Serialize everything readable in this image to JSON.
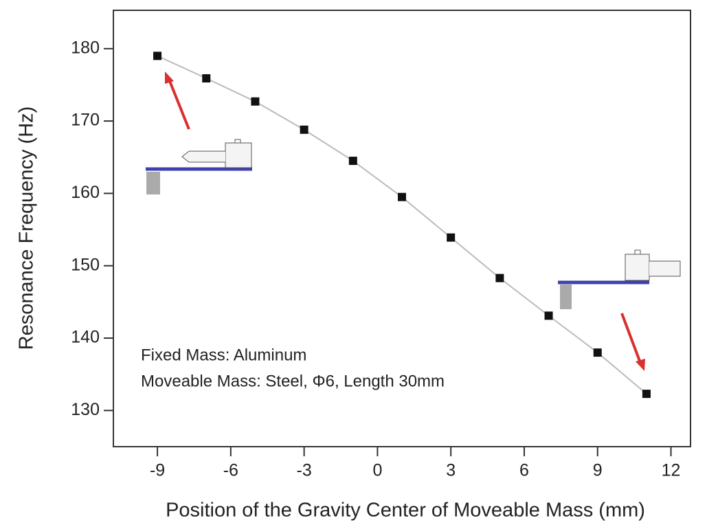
{
  "chart_data": {
    "type": "scatter",
    "x_label": "Position of the Gravity Center of Moveable Mass (mm)",
    "y_label": "Resonance Frequency (Hz)",
    "annotations": [
      "Fixed Mass: Aluminum",
      "Moveable Mass: Steel, Φ6, Length 30mm"
    ],
    "series": [
      {
        "color": "#111111",
        "line_color": "#bbbbbb",
        "x": [
          -9,
          -7,
          -5,
          -3,
          -1,
          1,
          3,
          5,
          7,
          9,
          11
        ],
        "values": [
          179.0,
          175.9,
          172.7,
          168.8,
          164.5,
          159.5,
          153.9,
          148.3,
          143.1,
          138.0,
          132.3
        ]
      }
    ],
    "xlim": [
      -10.8,
      12.8
    ],
    "xticks": [
      -9,
      -6,
      -3,
      0,
      3,
      6,
      9,
      12
    ],
    "ylim": [
      125,
      185.3
    ],
    "yticks": [
      130,
      140,
      150,
      160,
      170,
      180
    ]
  }
}
